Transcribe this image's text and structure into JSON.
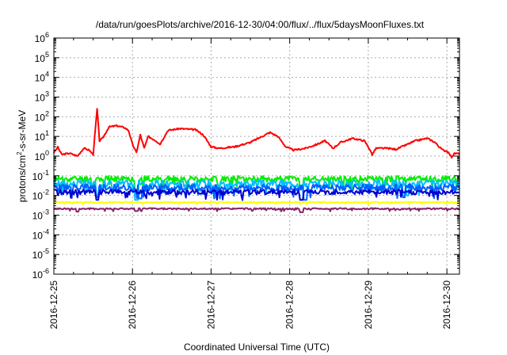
{
  "chart_data": {
    "type": "line",
    "title": "/data/run/goesPlots/archive/2016-12-30/04:00/flux/../flux/5daysMoonFluxes.txt",
    "xlabel": "Coordinated Universal Time (UTC)",
    "ylabel": {
      "pre": "protons/cm",
      "sup": "2",
      "post": "-s-sr-MeV"
    },
    "log_y": true,
    "ylim_exp": [
      -6,
      6
    ],
    "yticks": [
      {
        "base": "10",
        "exp": "6",
        "e": 6
      },
      {
        "base": "10",
        "exp": "5",
        "e": 5
      },
      {
        "base": "10",
        "exp": "4",
        "e": 4
      },
      {
        "base": "10",
        "exp": "3",
        "e": 3
      },
      {
        "base": "10",
        "exp": "2",
        "e": 2
      },
      {
        "base": "10",
        "exp": "1",
        "e": 1
      },
      {
        "base": "10",
        "exp": "0",
        "e": 0
      },
      {
        "base": "10",
        "exp": "-1",
        "e": -1
      },
      {
        "base": "10",
        "exp": "-2",
        "e": -2
      },
      {
        "base": "10",
        "exp": "-3",
        "e": -3
      },
      {
        "base": "10",
        "exp": "-4",
        "e": -4
      },
      {
        "base": "10",
        "exp": "-5",
        "e": -5
      },
      {
        "base": "10",
        "exp": "-6",
        "e": -6
      }
    ],
    "x_days": [
      0,
      5.16
    ],
    "xticks": [
      {
        "label": "2016-12-25",
        "d": 0
      },
      {
        "label": "2016-12-26",
        "d": 1
      },
      {
        "label": "2016-12-27",
        "d": 2
      },
      {
        "label": "2016-12-28",
        "d": 3
      },
      {
        "label": "2016-12-29",
        "d": 4
      },
      {
        "label": "2016-12-30",
        "d": 5
      }
    ],
    "grid": "major-dashed",
    "series": [
      {
        "color": "#ff0000",
        "width": 2,
        "noise": 0.08,
        "seed": 3,
        "points": [
          [
            0,
            1.5
          ],
          [
            0.05,
            2.8
          ],
          [
            0.1,
            1.2
          ],
          [
            0.2,
            1.4
          ],
          [
            0.3,
            1.0
          ],
          [
            0.38,
            2.5
          ],
          [
            0.45,
            2.0
          ],
          [
            0.5,
            1.2
          ],
          [
            0.55,
            250
          ],
          [
            0.58,
            6
          ],
          [
            0.62,
            8
          ],
          [
            0.7,
            30
          ],
          [
            0.8,
            35
          ],
          [
            0.9,
            28
          ],
          [
            0.95,
            20
          ],
          [
            1.0,
            4
          ],
          [
            1.05,
            1.5
          ],
          [
            1.1,
            12
          ],
          [
            1.15,
            2.5
          ],
          [
            1.2,
            10
          ],
          [
            1.3,
            6
          ],
          [
            1.35,
            4
          ],
          [
            1.45,
            20
          ],
          [
            1.6,
            25
          ],
          [
            1.8,
            22
          ],
          [
            1.9,
            12
          ],
          [
            2.0,
            3
          ],
          [
            2.1,
            2.5
          ],
          [
            2.3,
            3
          ],
          [
            2.5,
            5
          ],
          [
            2.6,
            8
          ],
          [
            2.75,
            16
          ],
          [
            2.85,
            10
          ],
          [
            2.95,
            3
          ],
          [
            3.05,
            2
          ],
          [
            3.2,
            2.5
          ],
          [
            3.35,
            4
          ],
          [
            3.45,
            6
          ],
          [
            3.55,
            2.5
          ],
          [
            3.65,
            5
          ],
          [
            3.8,
            8
          ],
          [
            3.95,
            6
          ],
          [
            4.0,
            3
          ],
          [
            4.05,
            1.2
          ],
          [
            4.1,
            2.5
          ],
          [
            4.25,
            2.5
          ],
          [
            4.35,
            2.2
          ],
          [
            4.5,
            4
          ],
          [
            4.6,
            6
          ],
          [
            4.75,
            8
          ],
          [
            4.85,
            5
          ],
          [
            4.9,
            3
          ],
          [
            4.95,
            2
          ],
          [
            5.0,
            1.8
          ],
          [
            5.06,
            0.9
          ],
          [
            5.1,
            1.4
          ],
          [
            5.16,
            1.3
          ]
        ]
      },
      {
        "color": "#00ee00",
        "width": 2,
        "noise": 0.3,
        "seed": 11,
        "base": 0.07,
        "dips": [
          [
            0.5,
            0.035
          ],
          [
            1.05,
            0.02
          ],
          [
            2.1,
            0.03
          ],
          [
            3.15,
            0.025
          ],
          [
            4.2,
            0.03
          ]
        ]
      },
      {
        "color": "#00c0ff",
        "width": 2,
        "noise": 0.35,
        "seed": 17,
        "base": 0.04,
        "dips": [
          [
            0.55,
            0.01
          ],
          [
            1.05,
            0.006
          ],
          [
            2.05,
            0.008
          ],
          [
            3.15,
            0.006
          ],
          [
            4.5,
            0.01
          ]
        ]
      },
      {
        "color": "#0060ff",
        "width": 2,
        "noise": 0.35,
        "seed": 23,
        "base": 0.025,
        "dips": [
          [
            0.55,
            0.008
          ],
          [
            1.1,
            0.007
          ],
          [
            3.2,
            0.006
          ],
          [
            4.45,
            0.008
          ]
        ]
      },
      {
        "color": "#0000d0",
        "width": 2,
        "noise": 0.25,
        "seed": 29,
        "base": 0.015,
        "dips": [
          [
            0.55,
            0.006
          ],
          [
            3.15,
            0.006
          ]
        ]
      },
      {
        "color": "#ffff00",
        "width": 2,
        "noise": 0.06,
        "seed": 37,
        "base": 0.0045,
        "dips": []
      },
      {
        "color": "#882266",
        "width": 2,
        "noise": 0.08,
        "seed": 41,
        "base": 0.0021,
        "dips": [
          [
            0.3,
            0.0015
          ],
          [
            1.05,
            0.0016
          ],
          [
            3.15,
            0.0014
          ]
        ]
      }
    ]
  }
}
